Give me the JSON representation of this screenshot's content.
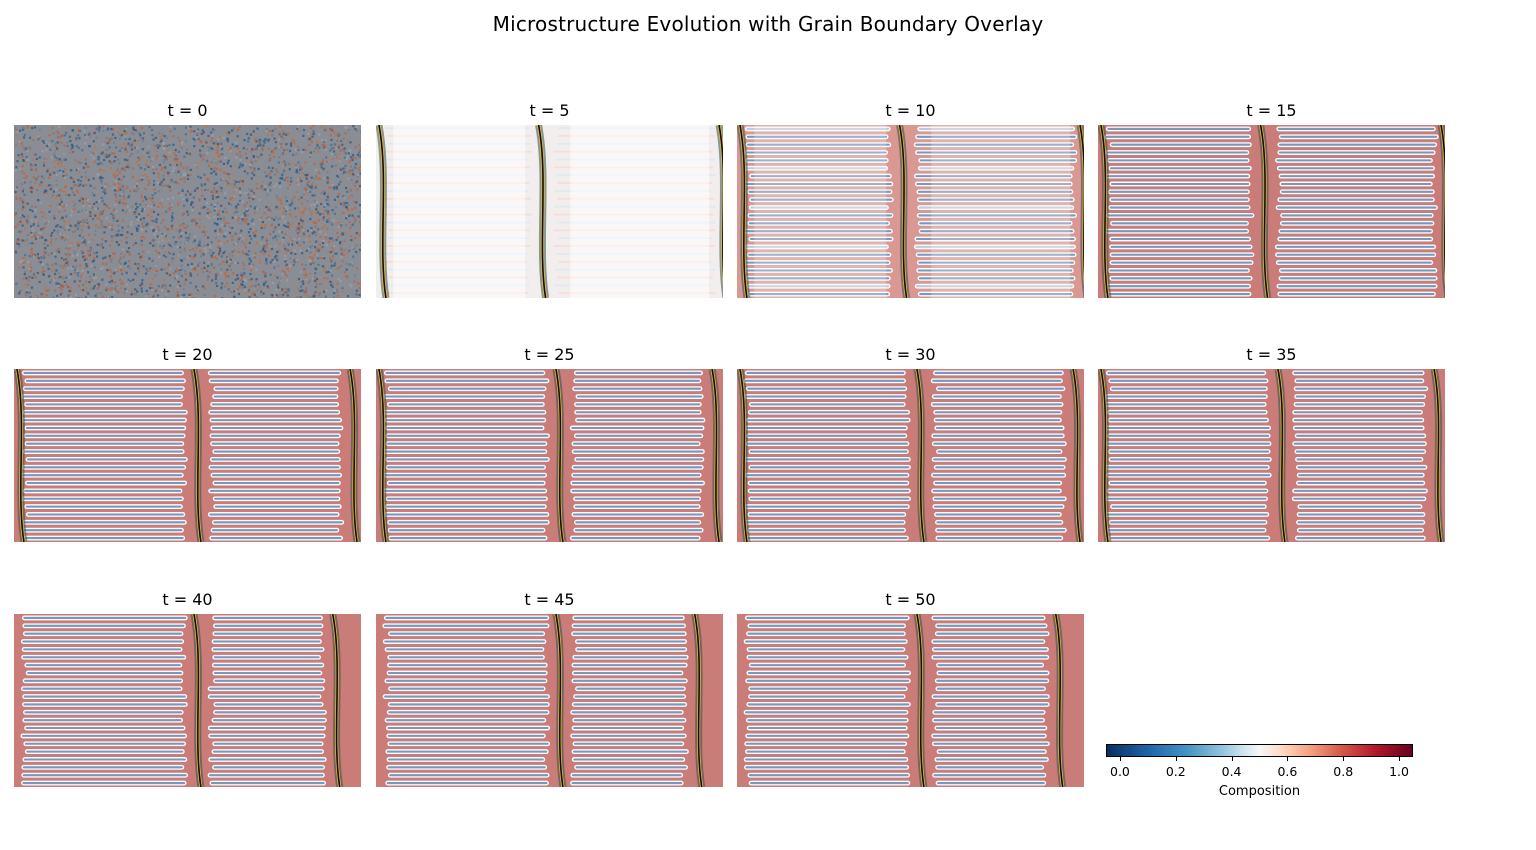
{
  "title": "Microstructure Evolution with Grain Boundary Overlay",
  "chart_data": {
    "type": "heatmap",
    "title": "Microstructure Evolution with Grain Boundary Overlay",
    "layout": "3 rows x 4 columns of image panels; last cell holds the colorbar",
    "panels": [
      {
        "label": "t = 0",
        "t": 0,
        "state": "random noise"
      },
      {
        "label": "t = 5",
        "t": 5,
        "state": "faint lamellae"
      },
      {
        "label": "t = 10",
        "t": 10,
        "state": "lamellae forming"
      },
      {
        "label": "t = 15",
        "t": 15,
        "state": "lamellae"
      },
      {
        "label": "t = 20",
        "t": 20,
        "state": "lamellae"
      },
      {
        "label": "t = 25",
        "t": 25,
        "state": "lamellae"
      },
      {
        "label": "t = 30",
        "t": 30,
        "state": "lamellae"
      },
      {
        "label": "t = 35",
        "t": 35,
        "state": "lamellae"
      },
      {
        "label": "t = 40",
        "t": 40,
        "state": "lamellae"
      },
      {
        "label": "t = 45",
        "t": 45,
        "state": "lamellae"
      },
      {
        "label": "t = 50",
        "t": 50,
        "state": "lamellae"
      }
    ],
    "colorbar": {
      "label": "Composition",
      "colormap": "RdBu_r",
      "range": [
        -0.05,
        1.05
      ],
      "ticks": [
        0.0,
        0.2,
        0.4,
        0.6,
        0.8,
        1.0
      ],
      "tick_labels": [
        "0.0",
        "0.2",
        "0.4",
        "0.6",
        "0.8",
        "1.0"
      ],
      "orientation": "horizontal",
      "placement": "bottom-right"
    },
    "colors": {
      "low": "#053061",
      "mid": "#f7f7f7",
      "high": "#67001f",
      "boundary": "#1a0a00"
    }
  }
}
